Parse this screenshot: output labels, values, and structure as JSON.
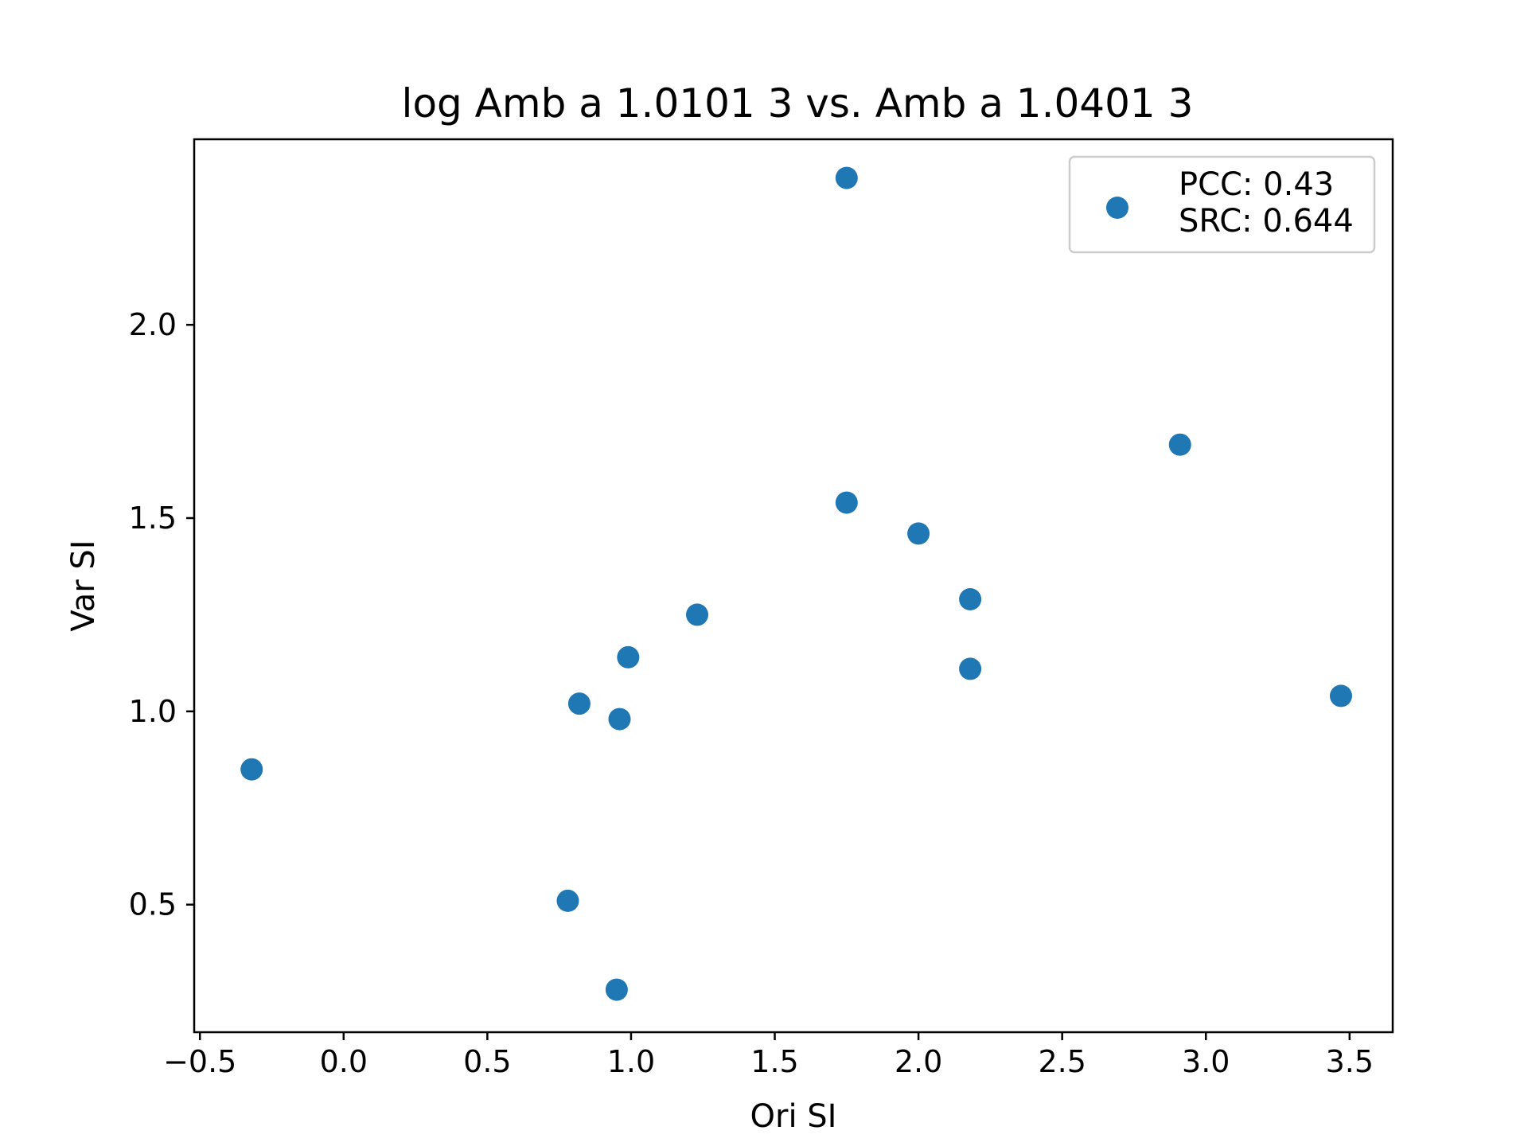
{
  "chart_data": {
    "type": "scatter",
    "title": "log Amb a 1.0101 3 vs. Amb a 1.0401 3",
    "xlabel": "Ori SI",
    "ylabel": "Var SI",
    "xlim": [
      -0.52,
      3.65
    ],
    "ylim": [
      0.17,
      2.48
    ],
    "xticks": [
      -0.5,
      0.0,
      0.5,
      1.0,
      1.5,
      2.0,
      2.5,
      3.0,
      3.5
    ],
    "xtick_labels": [
      "−0.5",
      "0.0",
      "0.5",
      "1.0",
      "1.5",
      "2.0",
      "2.5",
      "3.0",
      "3.5"
    ],
    "yticks": [
      0.5,
      1.0,
      1.5,
      2.0
    ],
    "ytick_labels": [
      "0.5",
      "1.0",
      "1.5",
      "2.0"
    ],
    "grid": false,
    "legend_position": "top-right",
    "legend_lines": [
      "PCC: 0.43",
      "SRC: 0.644"
    ],
    "marker_color": "#1f77b4",
    "points": [
      {
        "x": -0.32,
        "y": 0.85
      },
      {
        "x": 0.78,
        "y": 0.51
      },
      {
        "x": 0.82,
        "y": 1.02
      },
      {
        "x": 0.95,
        "y": 0.28
      },
      {
        "x": 0.96,
        "y": 0.98
      },
      {
        "x": 0.99,
        "y": 1.14
      },
      {
        "x": 1.23,
        "y": 1.25
      },
      {
        "x": 1.75,
        "y": 2.38
      },
      {
        "x": 1.75,
        "y": 1.54
      },
      {
        "x": 2.0,
        "y": 1.46
      },
      {
        "x": 2.18,
        "y": 1.29
      },
      {
        "x": 2.18,
        "y": 1.11
      },
      {
        "x": 2.91,
        "y": 1.69
      },
      {
        "x": 3.47,
        "y": 1.04
      }
    ]
  }
}
